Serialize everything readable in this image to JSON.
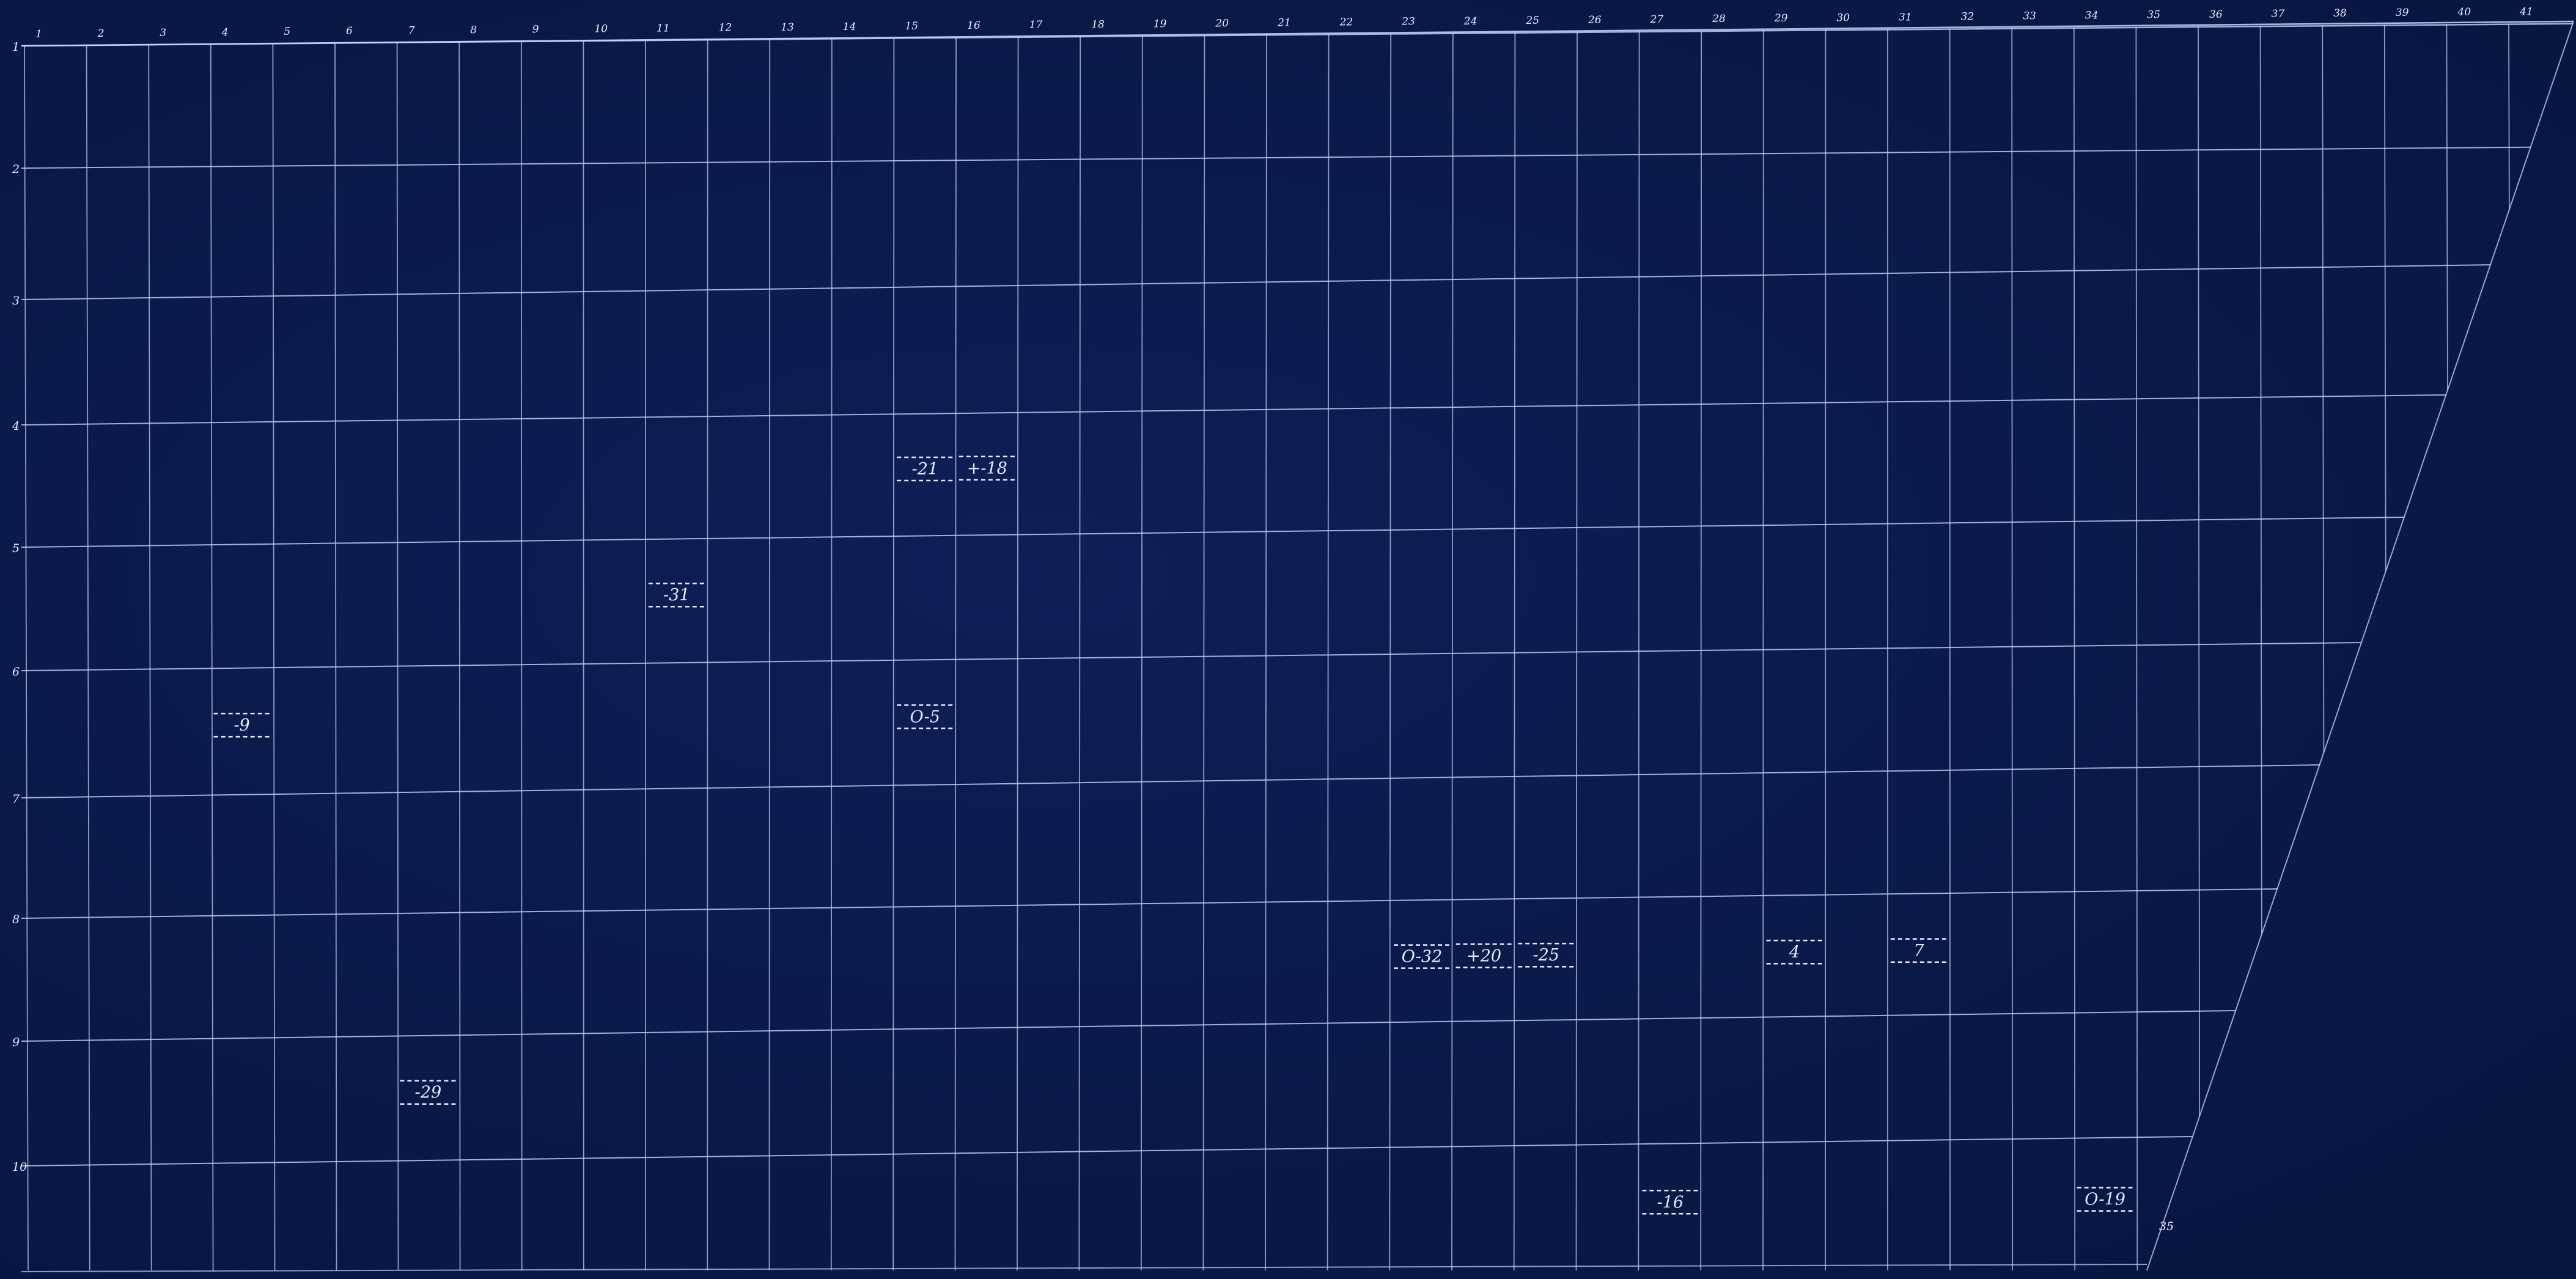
{
  "sheet": {
    "background": "#0b1a4a",
    "line_color": "#c9d6ff",
    "corner_label": "35"
  },
  "column_labels": [
    "1",
    "2",
    "3",
    "4",
    "5",
    "6",
    "7",
    "8",
    "9",
    "10",
    "11",
    "12",
    "13",
    "14",
    "15",
    "16",
    "17",
    "18",
    "19",
    "20",
    "21",
    "22",
    "23",
    "24",
    "25",
    "26",
    "27",
    "28",
    "29",
    "30",
    "31",
    "32",
    "33",
    "34",
    "35",
    "36",
    "37",
    "38",
    "39",
    "40",
    "41"
  ],
  "row_labels": [
    "1",
    "2",
    "3",
    "4",
    "5",
    "6",
    "7",
    "8",
    "9",
    "10"
  ],
  "markers": [
    {
      "text": "-9",
      "col": 4,
      "row": 6
    },
    {
      "text": "-31",
      "col": 11,
      "row": 5
    },
    {
      "text": "-21",
      "col": 15,
      "row": 4
    },
    {
      "text": "+-18",
      "col": 16,
      "row": 4
    },
    {
      "text": "O-5",
      "col": 15,
      "row": 6
    },
    {
      "text": "O-32",
      "col": 23,
      "row": 8
    },
    {
      "text": "+20",
      "col": 24,
      "row": 8
    },
    {
      "text": "-25",
      "col": 25,
      "row": 8
    },
    {
      "text": "4",
      "col": 29,
      "row": 8
    },
    {
      "text": "7",
      "col": 31,
      "row": 8
    },
    {
      "text": "-29",
      "col": 7,
      "row": 9
    },
    {
      "text": "-16",
      "col": 27,
      "row": 10
    },
    {
      "text": "O-19",
      "col": 34,
      "row": 10
    }
  ]
}
